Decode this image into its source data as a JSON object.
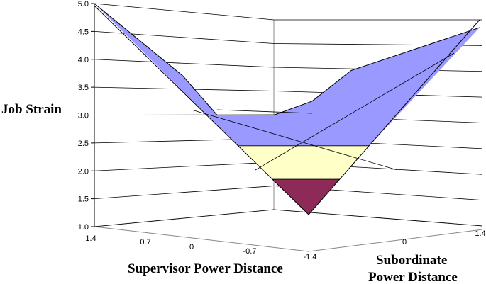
{
  "chart_data": {
    "type": "surface",
    "zlabel": "Job Strain",
    "xlabel": "Supervisor Power Distance",
    "ylabel_line1": "Subordinate",
    "ylabel_line2": "Power Distance",
    "z_ticks": [
      "1.0",
      "1.5",
      "2.0",
      "2.5",
      "3.0",
      "3.5",
      "4.0",
      "4.5",
      "5.0"
    ],
    "zlim": [
      1.0,
      5.0
    ],
    "x_ticks": [
      "1.4",
      "0.7",
      "0",
      "-0.7",
      "-1.4"
    ],
    "y_ticks": [
      "0",
      "1.4"
    ],
    "grid": true,
    "bands": [
      {
        "range": [
          1.0,
          1.85
        ],
        "color": "#8e2a58"
      },
      {
        "range": [
          1.85,
          2.45
        ],
        "color": "#ffffc8"
      },
      {
        "range": [
          2.45,
          5.0
        ],
        "color": "#9999ff"
      }
    ],
    "surface_points": {
      "back_edge_z": [
        5.0,
        3.7,
        3.0,
        3.0,
        3.25,
        3.8,
        4.85
      ],
      "front_edge_z": [
        5.0,
        3.1,
        2.2,
        1.25,
        2.2,
        3.3,
        4.85
      ]
    }
  }
}
